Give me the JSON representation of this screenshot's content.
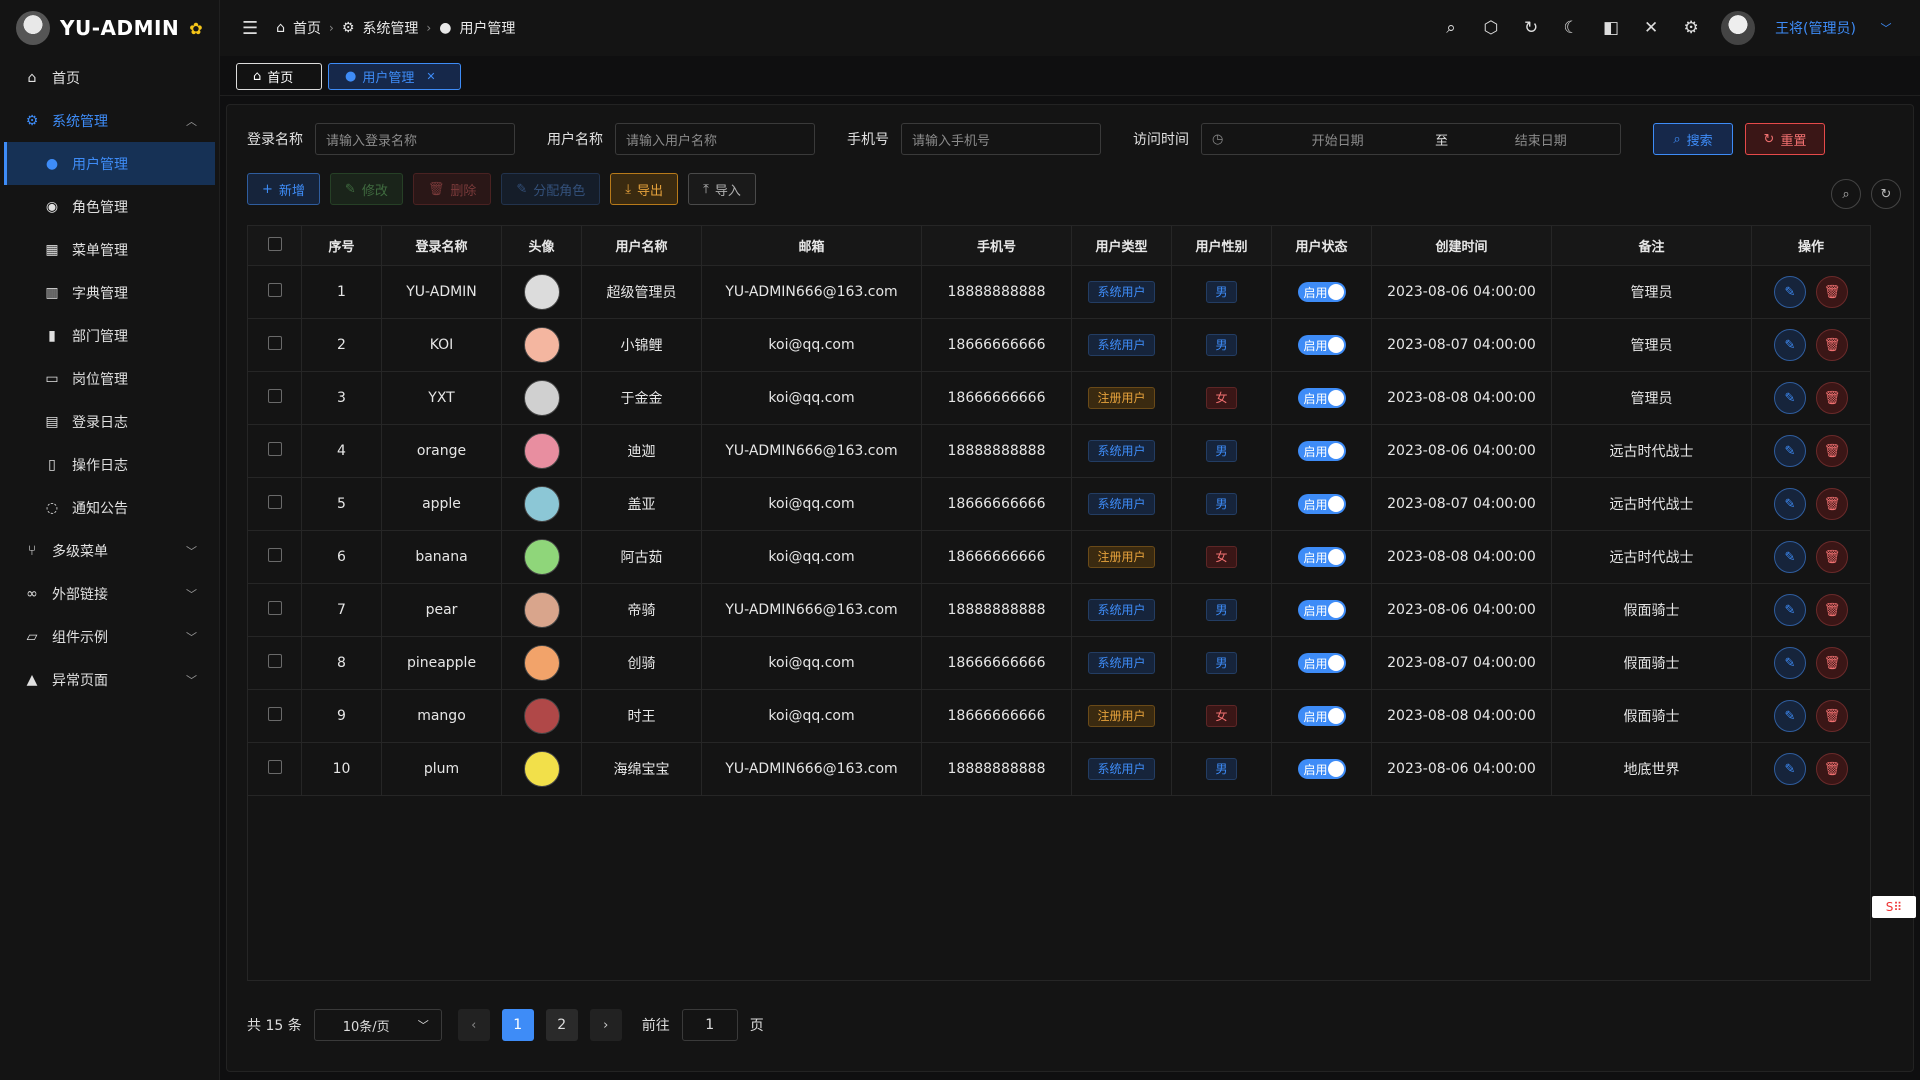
{
  "app": {
    "title": "YU-ADMIN"
  },
  "sidebar": {
    "items": [
      {
        "label": "首页",
        "icon": "home-icon"
      },
      {
        "label": "系统管理",
        "icon": "gear-icon"
      },
      {
        "label": "用户管理",
        "icon": "user-icon"
      },
      {
        "label": "角色管理",
        "icon": "camera-icon"
      },
      {
        "label": "菜单管理",
        "icon": "grid-icon"
      },
      {
        "label": "字典管理",
        "icon": "book-icon"
      },
      {
        "label": "部门管理",
        "icon": "bar-chart-icon"
      },
      {
        "label": "岗位管理",
        "icon": "id-card-icon"
      },
      {
        "label": "登录日志",
        "icon": "calendar-icon"
      },
      {
        "label": "操作日志",
        "icon": "notebook-icon"
      },
      {
        "label": "通知公告",
        "icon": "chat-icon"
      },
      {
        "label": "多级菜单",
        "icon": "branch-icon"
      },
      {
        "label": "外部链接",
        "icon": "link-icon"
      },
      {
        "label": "组件示例",
        "icon": "components-icon"
      },
      {
        "label": "异常页面",
        "icon": "warning-icon"
      }
    ]
  },
  "header": {
    "breadcrumb": [
      "首页",
      "系统管理",
      "用户管理"
    ],
    "user": "王将(管理员)"
  },
  "tabs": [
    {
      "label": "首页"
    },
    {
      "label": "用户管理"
    }
  ],
  "search": {
    "login_label": "登录名称",
    "login_placeholder": "请输入登录名称",
    "name_label": "用户名称",
    "name_placeholder": "请输入用户名称",
    "phone_label": "手机号",
    "phone_placeholder": "请输入手机号",
    "time_label": "访问时间",
    "start_placeholder": "开始日期",
    "to": "至",
    "end_placeholder": "结束日期",
    "search_btn": "搜索",
    "reset_btn": "重置"
  },
  "toolbar": {
    "add": "新增",
    "edit": "修改",
    "delete": "删除",
    "assign_role": "分配角色",
    "export": "导出",
    "import": "导入"
  },
  "table": {
    "headers": [
      "序号",
      "登录名称",
      "头像",
      "用户名称",
      "邮箱",
      "手机号",
      "用户类型",
      "用户性别",
      "用户状态",
      "创建时间",
      "备注",
      "操作"
    ],
    "rows": [
      {
        "no": "1",
        "login": "YU-ADMIN",
        "name": "超级管理员",
        "email": "YU-ADMIN666@163.com",
        "phone": "18888888888",
        "type": "系统用户",
        "sex": "男",
        "status": "启用",
        "created": "2023-08-06 04:00:00",
        "remark": "管理员",
        "avatar_color": "#dcdcdc"
      },
      {
        "no": "2",
        "login": "KOI",
        "name": "小锦鲤",
        "email": "koi@qq.com",
        "phone": "18666666666",
        "type": "系统用户",
        "sex": "男",
        "status": "启用",
        "created": "2023-08-07 04:00:00",
        "remark": "管理员",
        "avatar_color": "#f4b6a0"
      },
      {
        "no": "3",
        "login": "YXT",
        "name": "于金金",
        "email": "koi@qq.com",
        "phone": "18666666666",
        "type": "注册用户",
        "sex": "女",
        "status": "启用",
        "created": "2023-08-08 04:00:00",
        "remark": "管理员",
        "avatar_color": "#d0d0d0"
      },
      {
        "no": "4",
        "login": "orange",
        "name": "迪迦",
        "email": "YU-ADMIN666@163.com",
        "phone": "18888888888",
        "type": "系统用户",
        "sex": "男",
        "status": "启用",
        "created": "2023-08-06 04:00:00",
        "remark": "远古时代战士",
        "avatar_color": "#e88ea0"
      },
      {
        "no": "5",
        "login": "apple",
        "name": "盖亚",
        "email": "koi@qq.com",
        "phone": "18666666666",
        "type": "系统用户",
        "sex": "男",
        "status": "启用",
        "created": "2023-08-07 04:00:00",
        "remark": "远古时代战士",
        "avatar_color": "#8cc7d6"
      },
      {
        "no": "6",
        "login": "banana",
        "name": "阿古茹",
        "email": "koi@qq.com",
        "phone": "18666666666",
        "type": "注册用户",
        "sex": "女",
        "status": "启用",
        "created": "2023-08-08 04:00:00",
        "remark": "远古时代战士",
        "avatar_color": "#8fd67a"
      },
      {
        "no": "7",
        "login": "pear",
        "name": "帝骑",
        "email": "YU-ADMIN666@163.com",
        "phone": "18888888888",
        "type": "系统用户",
        "sex": "男",
        "status": "启用",
        "created": "2023-08-06 04:00:00",
        "remark": "假面骑士",
        "avatar_color": "#d9a58c"
      },
      {
        "no": "8",
        "login": "pineapple",
        "name": "创骑",
        "email": "koi@qq.com",
        "phone": "18666666666",
        "type": "系统用户",
        "sex": "男",
        "status": "启用",
        "created": "2023-08-07 04:00:00",
        "remark": "假面骑士",
        "avatar_color": "#f2a36a"
      },
      {
        "no": "9",
        "login": "mango",
        "name": "时王",
        "email": "koi@qq.com",
        "phone": "18666666666",
        "type": "注册用户",
        "sex": "女",
        "status": "启用",
        "created": "2023-08-08 04:00:00",
        "remark": "假面骑士",
        "avatar_color": "#b04848"
      },
      {
        "no": "10",
        "login": "plum",
        "name": "海绵宝宝",
        "email": "YU-ADMIN666@163.com",
        "phone": "18888888888",
        "type": "系统用户",
        "sex": "男",
        "status": "启用",
        "created": "2023-08-06 04:00:00",
        "remark": "地底世界",
        "avatar_color": "#f2e04a"
      }
    ]
  },
  "pager": {
    "total": "共 15 条",
    "size": "10条/页",
    "pages": [
      "1",
      "2"
    ],
    "current": "1",
    "goto_label": "前往",
    "goto_value": "1",
    "page_unit": "页"
  },
  "colors": {
    "accent": "#3e8cf7",
    "danger": "#f07070",
    "warning": "#e6a23c"
  }
}
